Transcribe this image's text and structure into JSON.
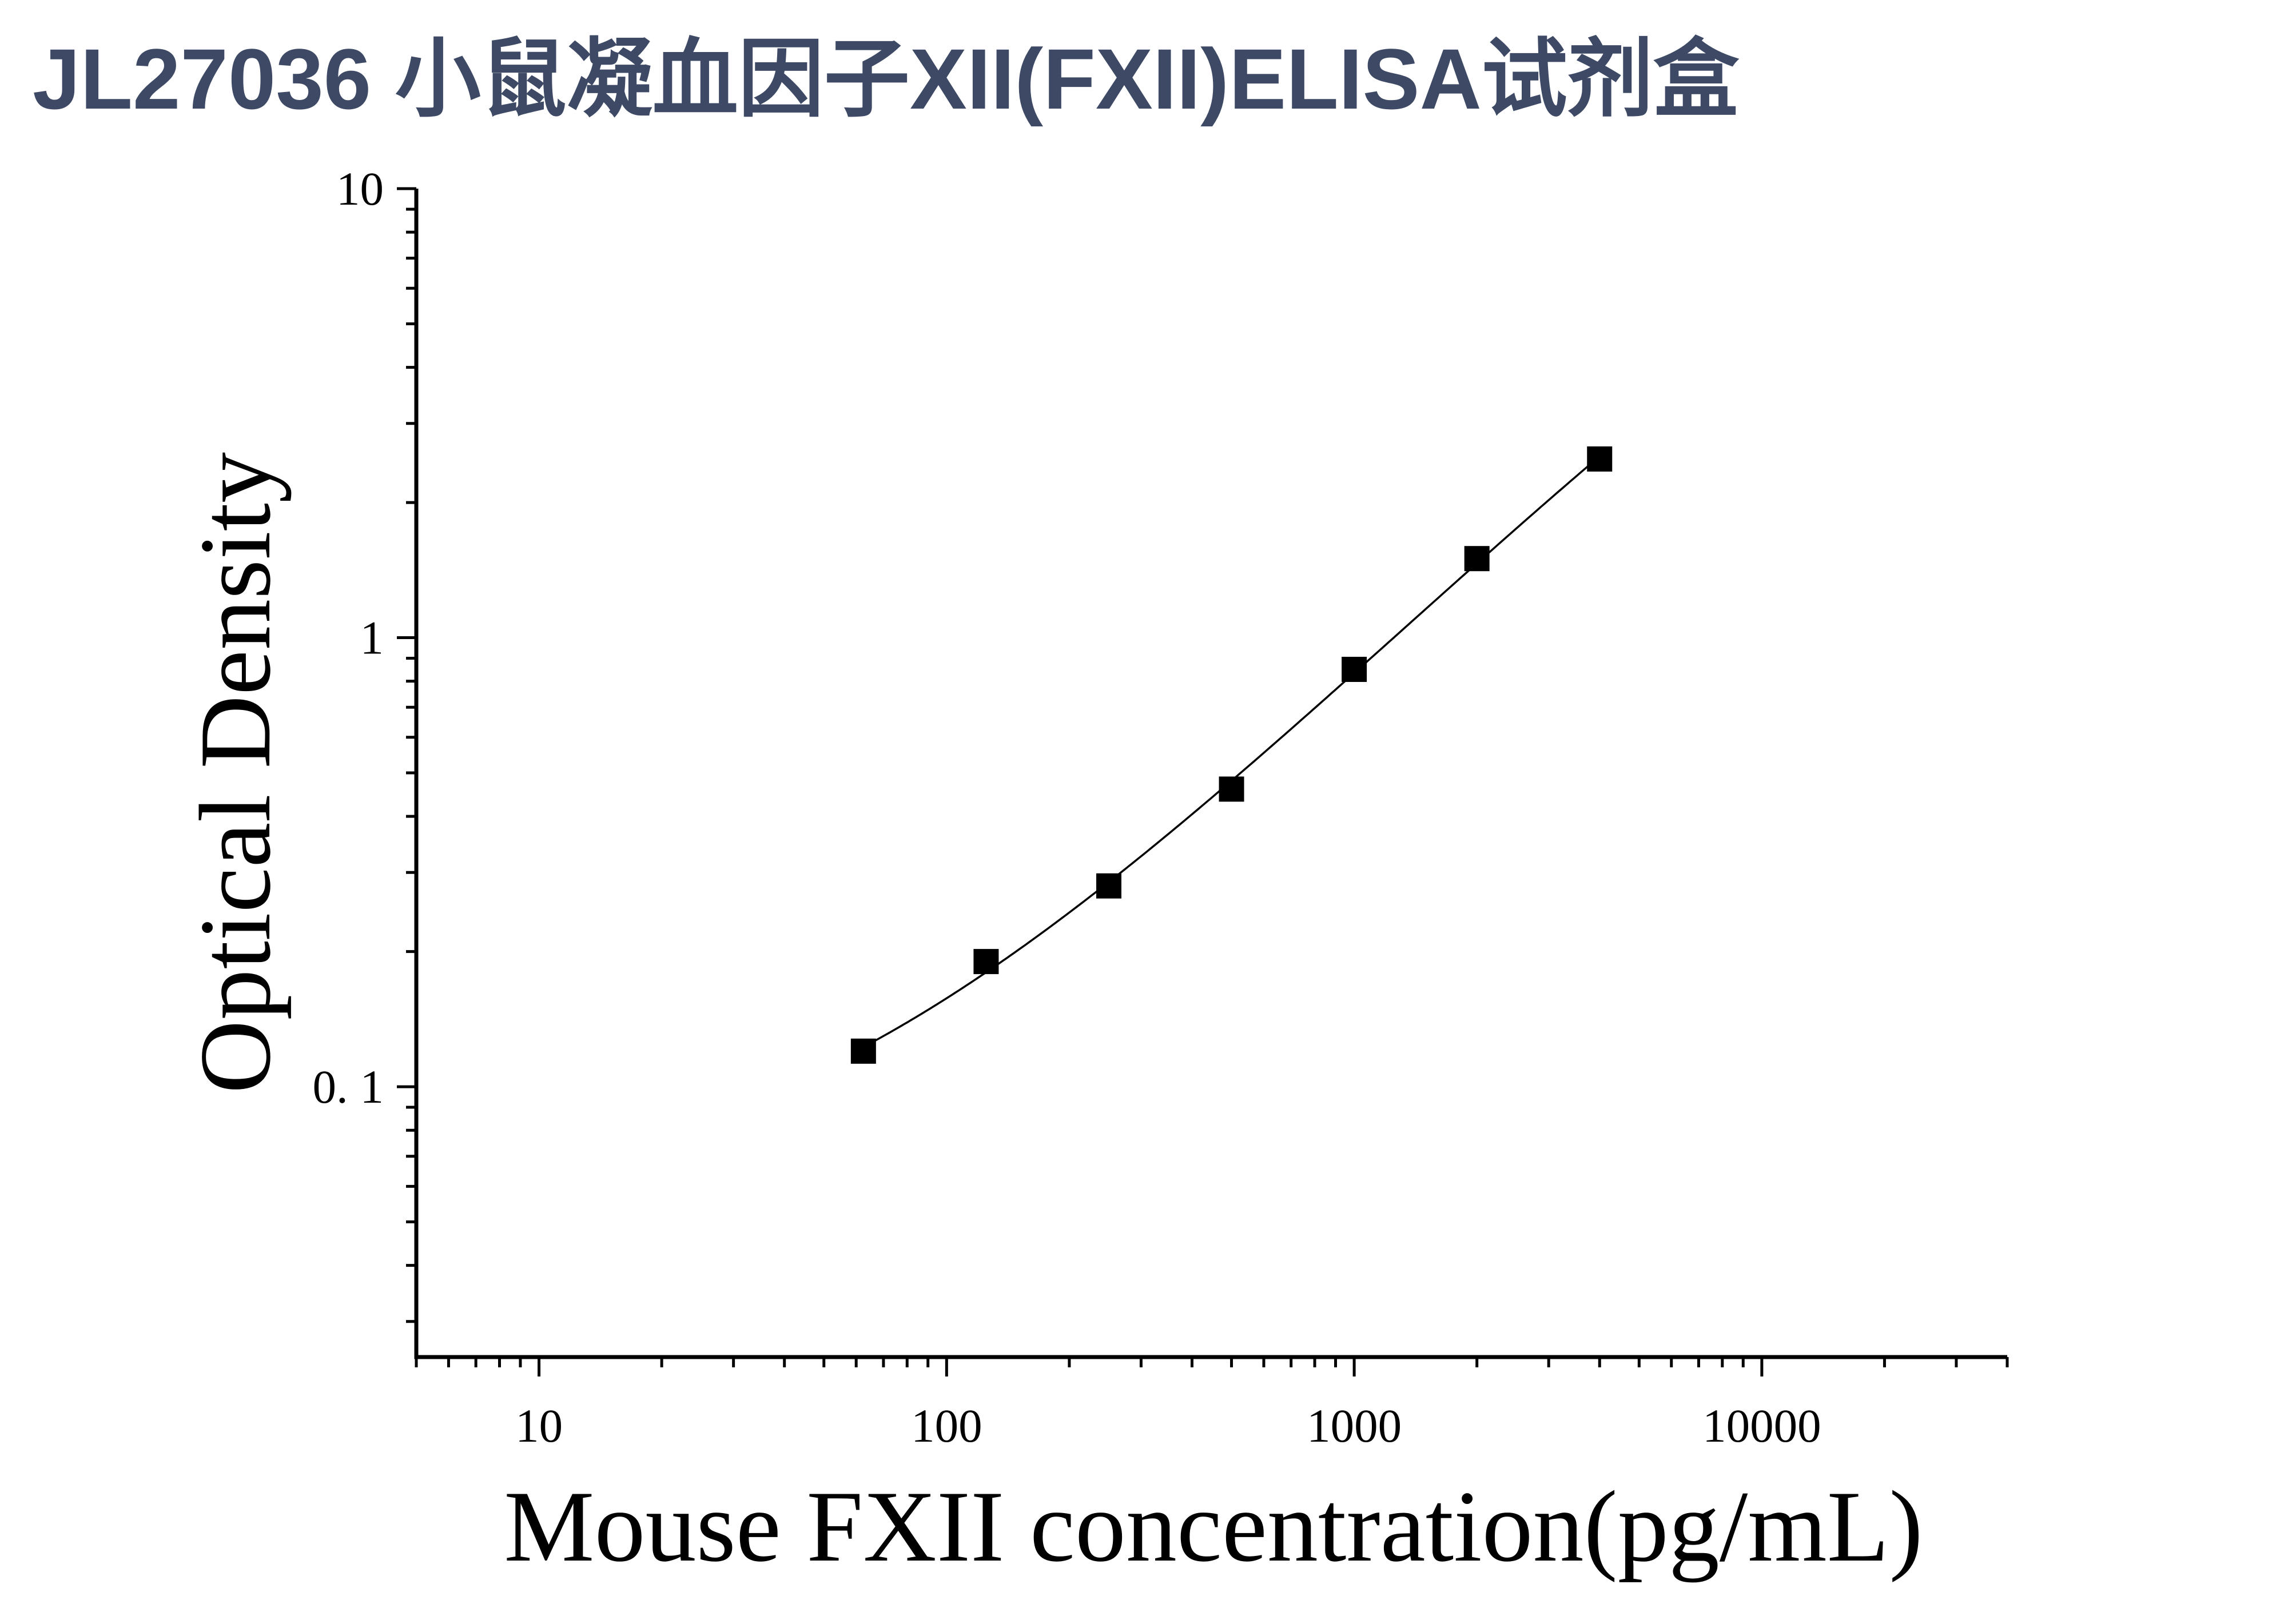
{
  "colors": {
    "title": "#3e4a65",
    "axis": "#000000",
    "marker": "#000000",
    "curve": "#000000",
    "background": "#ffffff"
  },
  "chart_data": {
    "type": "scatter",
    "title": "JL27036 小鼠凝血因子XII(FXII)ELISA试剂盒",
    "xlabel": "Mouse FXII concentration(pg/mL)",
    "ylabel": "Optical Density",
    "xscale": "log",
    "yscale": "log",
    "xlim": [
      5,
      40000
    ],
    "ylim": [
      0.025,
      10
    ],
    "x_ticks": [
      10,
      100,
      1000,
      10000
    ],
    "x_tick_labels": [
      "10",
      "100",
      "1000",
      "10000"
    ],
    "y_ticks": [
      0.1,
      1,
      10
    ],
    "y_tick_labels": [
      "0. 1",
      "1",
      "10"
    ],
    "grid": false,
    "legend": "none",
    "series": [
      {
        "marker": "square",
        "fitted_curve": true,
        "x": [
          62.5,
          125,
          250,
          500,
          1000,
          2000,
          4000
        ],
        "y": [
          0.12,
          0.19,
          0.28,
          0.46,
          0.85,
          1.5,
          2.5
        ]
      }
    ]
  }
}
